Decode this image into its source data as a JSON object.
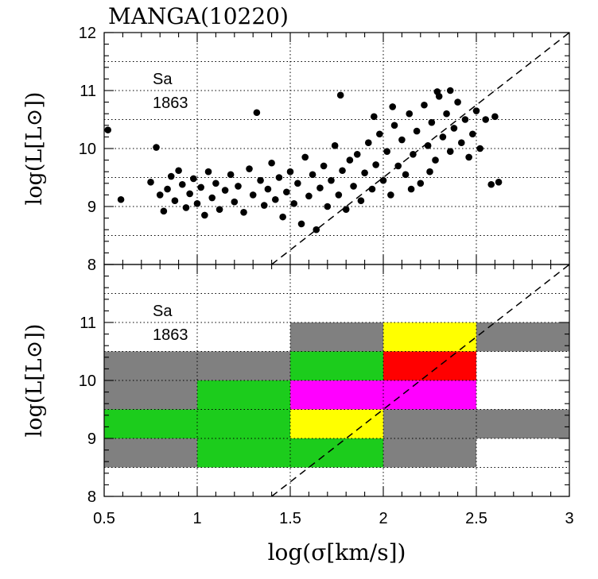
{
  "title": "MANGA(10220)",
  "chart_data": [
    {
      "type": "scatter",
      "panel": "top",
      "title": "MANGA(10220)",
      "xlabel": "log(σ[km/s])",
      "ylabel": "log(L[L⊙])",
      "xlim": [
        0.5,
        3
      ],
      "ylim": [
        8,
        12
      ],
      "grid": true,
      "x_ticks": [
        "0.5",
        "1",
        "1.5",
        "2",
        "2.5",
        "3"
      ],
      "y_ticks": [
        "8",
        "9",
        "10",
        "11",
        "12"
      ],
      "annotation_type": "Sa",
      "annotation_count": "1863",
      "reference_line": {
        "slope": 2.5,
        "intercept": 4.5,
        "style": "dashed"
      },
      "series": [
        {
          "name": "galaxies",
          "points": [
            [
              0.52,
              10.32
            ],
            [
              0.59,
              9.12
            ],
            [
              0.75,
              9.42
            ],
            [
              0.78,
              10.02
            ],
            [
              0.8,
              9.2
            ],
            [
              0.82,
              8.92
            ],
            [
              0.84,
              9.3
            ],
            [
              0.86,
              9.52
            ],
            [
              0.88,
              9.1
            ],
            [
              0.9,
              9.62
            ],
            [
              0.92,
              9.38
            ],
            [
              0.94,
              8.98
            ],
            [
              0.96,
              9.22
            ],
            [
              0.98,
              9.48
            ],
            [
              1.0,
              9.05
            ],
            [
              1.02,
              9.33
            ],
            [
              1.04,
              8.85
            ],
            [
              1.06,
              9.6
            ],
            [
              1.08,
              9.15
            ],
            [
              1.1,
              9.4
            ],
            [
              1.12,
              8.95
            ],
            [
              1.15,
              9.28
            ],
            [
              1.18,
              9.55
            ],
            [
              1.2,
              9.08
            ],
            [
              1.22,
              9.35
            ],
            [
              1.25,
              8.9
            ],
            [
              1.28,
              9.65
            ],
            [
              1.3,
              9.2
            ],
            [
              1.32,
              10.62
            ],
            [
              1.34,
              9.45
            ],
            [
              1.36,
              9.02
            ],
            [
              1.38,
              9.3
            ],
            [
              1.4,
              9.75
            ],
            [
              1.42,
              9.12
            ],
            [
              1.44,
              9.5
            ],
            [
              1.46,
              8.82
            ],
            [
              1.48,
              9.25
            ],
            [
              1.5,
              9.6
            ],
            [
              1.52,
              9.05
            ],
            [
              1.54,
              9.4
            ],
            [
              1.56,
              8.7
            ],
            [
              1.58,
              9.85
            ],
            [
              1.6,
              9.18
            ],
            [
              1.62,
              9.55
            ],
            [
              1.64,
              8.6
            ],
            [
              1.66,
              9.32
            ],
            [
              1.68,
              9.7
            ],
            [
              1.7,
              9.0
            ],
            [
              1.72,
              9.45
            ],
            [
              1.74,
              10.05
            ],
            [
              1.76,
              9.2
            ],
            [
              1.78,
              9.62
            ],
            [
              1.8,
              8.95
            ],
            [
              1.82,
              9.8
            ],
            [
              1.84,
              9.35
            ],
            [
              1.86,
              9.9
            ],
            [
              1.88,
              9.1
            ],
            [
              1.9,
              9.58
            ],
            [
              1.92,
              10.1
            ],
            [
              1.94,
              9.3
            ],
            [
              1.96,
              9.72
            ],
            [
              1.98,
              10.25
            ],
            [
              2.0,
              9.45
            ],
            [
              2.02,
              9.95
            ],
            [
              2.04,
              9.2
            ],
            [
              2.06,
              10.4
            ],
            [
              2.08,
              9.7
            ],
            [
              2.1,
              10.15
            ],
            [
              2.12,
              9.55
            ],
            [
              2.14,
              10.6
            ],
            [
              2.16,
              9.9
            ],
            [
              2.18,
              10.3
            ],
            [
              2.2,
              9.4
            ],
            [
              2.22,
              10.75
            ],
            [
              2.24,
              10.05
            ],
            [
              2.26,
              10.45
            ],
            [
              2.28,
              9.8
            ],
            [
              2.3,
              10.9
            ],
            [
              2.32,
              10.2
            ],
            [
              2.34,
              10.6
            ],
            [
              2.36,
              9.95
            ],
            [
              2.38,
              10.35
            ],
            [
              2.4,
              10.8
            ],
            [
              2.42,
              10.1
            ],
            [
              2.44,
              10.5
            ],
            [
              2.46,
              9.85
            ],
            [
              2.48,
              10.25
            ],
            [
              2.5,
              10.65
            ],
            [
              2.52,
              10.0
            ],
            [
              2.55,
              10.5
            ],
            [
              2.58,
              9.38
            ],
            [
              2.62,
              9.42
            ],
            [
              2.6,
              10.55
            ],
            [
              1.77,
              10.92
            ],
            [
              2.29,
              10.98
            ],
            [
              2.36,
              11.0
            ],
            [
              1.95,
              10.55
            ],
            [
              2.05,
              10.72
            ],
            [
              2.15,
              9.3
            ],
            [
              2.25,
              9.6
            ]
          ]
        }
      ]
    },
    {
      "type": "heatmap",
      "panel": "bottom",
      "xlabel": "log(σ[km/s])",
      "ylabel": "log(L[L⊙])",
      "xlim": [
        0.5,
        3
      ],
      "ylim": [
        8,
        12
      ],
      "grid": true,
      "x_ticks": [
        "0.5",
        "1",
        "1.5",
        "2",
        "2.5",
        "3"
      ],
      "y_ticks": [
        "8",
        "9",
        "10",
        "11"
      ],
      "annotation_type": "Sa",
      "annotation_count": "1863",
      "reference_line": {
        "slope": 2.5,
        "intercept": 4.5,
        "style": "dashed"
      },
      "cells": [
        {
          "x0": 0.5,
          "x1": 1.0,
          "y0": 8.5,
          "y1": 9.0,
          "color": "#808080"
        },
        {
          "x0": 0.5,
          "x1": 1.0,
          "y0": 9.0,
          "y1": 9.5,
          "color": "#1ccc1c"
        },
        {
          "x0": 0.5,
          "x1": 1.0,
          "y0": 9.5,
          "y1": 10.0,
          "color": "#808080"
        },
        {
          "x0": 0.5,
          "x1": 1.0,
          "y0": 10.0,
          "y1": 10.5,
          "color": "#808080"
        },
        {
          "x0": 1.0,
          "x1": 1.5,
          "y0": 8.5,
          "y1": 9.0,
          "color": "#1ccc1c"
        },
        {
          "x0": 1.0,
          "x1": 1.5,
          "y0": 9.0,
          "y1": 9.5,
          "color": "#1ccc1c"
        },
        {
          "x0": 1.0,
          "x1": 1.5,
          "y0": 9.5,
          "y1": 10.0,
          "color": "#1ccc1c"
        },
        {
          "x0": 1.0,
          "x1": 1.5,
          "y0": 10.0,
          "y1": 10.5,
          "color": "#808080"
        },
        {
          "x0": 1.5,
          "x1": 2.0,
          "y0": 8.5,
          "y1": 9.0,
          "color": "#1ccc1c"
        },
        {
          "x0": 1.5,
          "x1": 2.0,
          "y0": 9.0,
          "y1": 9.5,
          "color": "#ffff00"
        },
        {
          "x0": 1.5,
          "x1": 2.0,
          "y0": 9.5,
          "y1": 10.0,
          "color": "#ff00ff"
        },
        {
          "x0": 1.5,
          "x1": 2.0,
          "y0": 10.0,
          "y1": 10.5,
          "color": "#1ccc1c"
        },
        {
          "x0": 1.5,
          "x1": 2.0,
          "y0": 10.5,
          "y1": 11.0,
          "color": "#808080"
        },
        {
          "x0": 2.0,
          "x1": 2.5,
          "y0": 8.5,
          "y1": 9.0,
          "color": "#808080"
        },
        {
          "x0": 2.0,
          "x1": 2.5,
          "y0": 9.0,
          "y1": 9.5,
          "color": "#808080"
        },
        {
          "x0": 2.0,
          "x1": 2.5,
          "y0": 9.5,
          "y1": 10.0,
          "color": "#ff00ff"
        },
        {
          "x0": 2.0,
          "x1": 2.5,
          "y0": 10.0,
          "y1": 10.5,
          "color": "#ff0000"
        },
        {
          "x0": 2.0,
          "x1": 2.5,
          "y0": 10.5,
          "y1": 11.0,
          "color": "#ffff00"
        },
        {
          "x0": 2.5,
          "x1": 3.0,
          "y0": 9.0,
          "y1": 9.5,
          "color": "#808080"
        },
        {
          "x0": 2.5,
          "x1": 3.0,
          "y0": 10.5,
          "y1": 11.0,
          "color": "#808080"
        }
      ]
    }
  ]
}
